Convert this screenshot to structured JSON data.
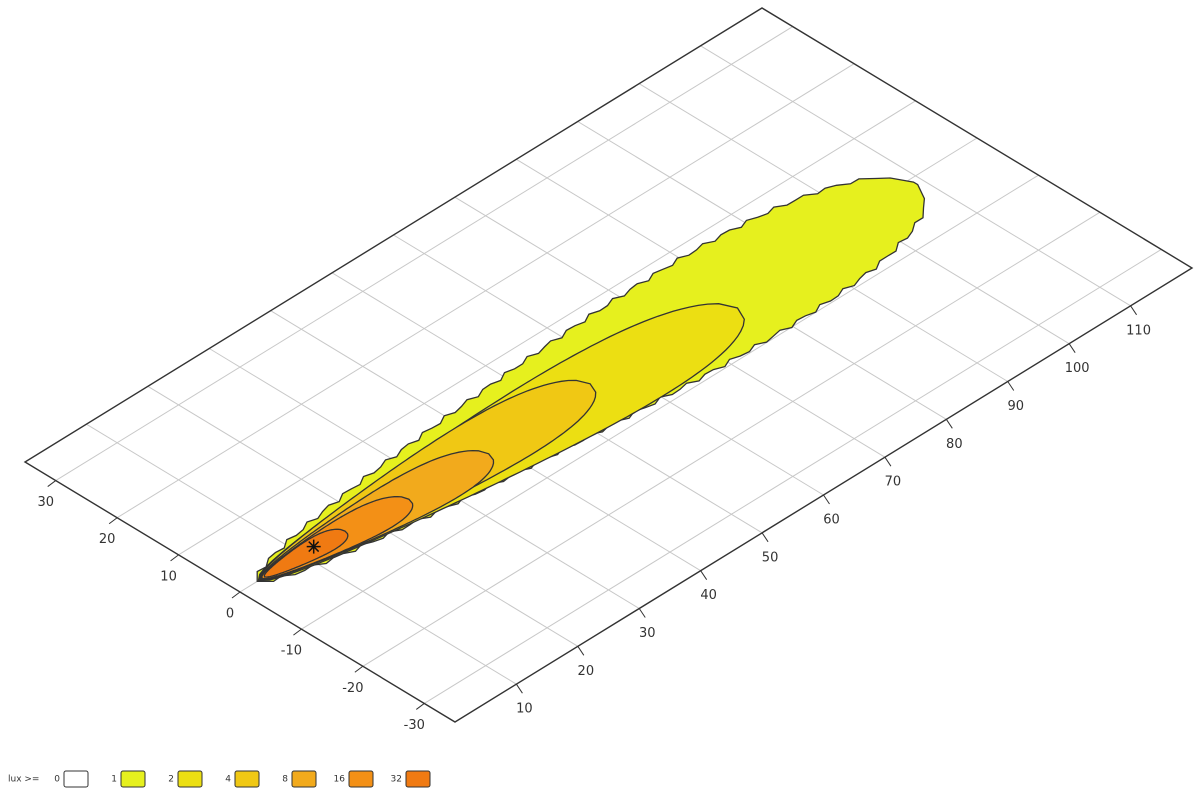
{
  "chart_data": {
    "type": "contour",
    "xlim": [
      0,
      120
    ],
    "ylim": [
      -35,
      35
    ],
    "xticks": [
      10,
      20,
      30,
      40,
      50,
      60,
      70,
      80,
      90,
      100,
      110
    ],
    "yticks": [
      30,
      20,
      10,
      0,
      -10,
      -20,
      -30
    ],
    "grid": true,
    "legend_title": "lux >=",
    "levels": [
      0,
      1,
      2,
      4,
      8,
      16,
      32
    ],
    "colors": [
      "#ffffff",
      "#e6f01e",
      "#ecdf12",
      "#f0c814",
      "#f2aa1c",
      "#f39016",
      "#f07a12"
    ]
  }
}
